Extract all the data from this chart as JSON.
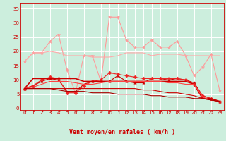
{
  "bg_color": "#cceedd",
  "grid_color": "#ffffff",
  "x_label": "Vent moyen/en rafales ( km/h )",
  "x_ticks": [
    0,
    1,
    2,
    3,
    4,
    5,
    6,
    7,
    8,
    9,
    10,
    11,
    12,
    13,
    14,
    15,
    16,
    17,
    18,
    19,
    20,
    21,
    22,
    23
  ],
  "y_ticks": [
    0,
    5,
    10,
    15,
    20,
    25,
    30,
    35
  ],
  "ylim": [
    -0.5,
    37
  ],
  "xlim": [
    -0.5,
    23.5
  ],
  "series": [
    {
      "y": [
        16.5,
        19.5,
        19.5,
        23.5,
        26.0,
        13.5,
        5.5,
        18.5,
        18.5,
        9.5,
        32.0,
        32.0,
        24.0,
        21.5,
        21.5,
        24.0,
        21.5,
        21.5,
        23.5,
        18.5,
        11.5,
        14.5,
        19.0,
        6.5
      ],
      "color": "#ff9999",
      "lw": 0.8,
      "marker": "*",
      "ms": 3.5
    },
    {
      "y": [
        16.5,
        19.5,
        19.5,
        20.0,
        19.5,
        18.5,
        18.5,
        18.5,
        18.0,
        18.0,
        18.0,
        18.5,
        19.5,
        19.5,
        19.5,
        18.5,
        19.0,
        19.0,
        19.0,
        18.5,
        18.5,
        18.5,
        18.5,
        18.5
      ],
      "color": "#ffaaaa",
      "lw": 0.8,
      "marker": null,
      "ms": 0
    },
    {
      "y": [
        7.0,
        8.0,
        9.5,
        10.5,
        10.0,
        6.0,
        6.0,
        8.5,
        9.5,
        9.5,
        9.5,
        11.5,
        9.5,
        9.0,
        9.0,
        10.5,
        10.5,
        10.0,
        10.5,
        10.0,
        9.0,
        4.5,
        3.5,
        2.5
      ],
      "color": "#cc0000",
      "lw": 0.8,
      "marker": "^",
      "ms": 2.5
    },
    {
      "y": [
        7.0,
        8.0,
        10.0,
        11.0,
        10.5,
        5.5,
        5.5,
        8.0,
        9.5,
        10.0,
        12.5,
        12.0,
        11.5,
        11.0,
        10.5,
        10.5,
        10.5,
        10.5,
        10.5,
        10.0,
        8.5,
        4.5,
        3.5,
        2.5
      ],
      "color": "#ee2222",
      "lw": 0.8,
      "marker": "D",
      "ms": 2.5
    },
    {
      "y": [
        7.0,
        10.5,
        10.5,
        10.5,
        10.5,
        10.5,
        10.5,
        9.5,
        9.5,
        9.5,
        9.5,
        9.5,
        9.5,
        9.5,
        9.5,
        9.5,
        9.5,
        9.5,
        9.5,
        9.5,
        8.5,
        3.5,
        3.5,
        2.5
      ],
      "color": "#cc0000",
      "lw": 1.2,
      "marker": null,
      "ms": 0
    },
    {
      "y": [
        7.0,
        7.5,
        8.5,
        9.5,
        9.5,
        9.5,
        9.0,
        8.5,
        8.5,
        9.0,
        9.5,
        9.5,
        9.5,
        9.5,
        9.5,
        9.5,
        9.5,
        9.0,
        9.0,
        8.5,
        8.5,
        4.0,
        3.0,
        2.5
      ],
      "color": "#ff4444",
      "lw": 0.8,
      "marker": null,
      "ms": 0
    },
    {
      "y": [
        7.0,
        7.0,
        7.0,
        7.0,
        7.0,
        7.0,
        7.0,
        7.0,
        7.0,
        7.0,
        7.0,
        7.0,
        7.0,
        7.0,
        6.5,
        6.5,
        6.0,
        5.5,
        5.5,
        5.0,
        4.5,
        3.5,
        3.0,
        2.5
      ],
      "color": "#cc0000",
      "lw": 0.8,
      "marker": null,
      "ms": 0
    },
    {
      "y": [
        7.0,
        7.0,
        7.0,
        7.0,
        6.5,
        6.0,
        6.0,
        6.0,
        5.5,
        5.5,
        5.5,
        5.0,
        5.0,
        5.0,
        5.0,
        4.5,
        4.5,
        4.0,
        4.0,
        4.0,
        3.5,
        3.5,
        3.0,
        2.5
      ],
      "color": "#aa0000",
      "lw": 0.8,
      "marker": null,
      "ms": 0
    }
  ],
  "tick_fontsize": 5,
  "axis_fontsize": 6,
  "arrow_color": "#cc0000"
}
